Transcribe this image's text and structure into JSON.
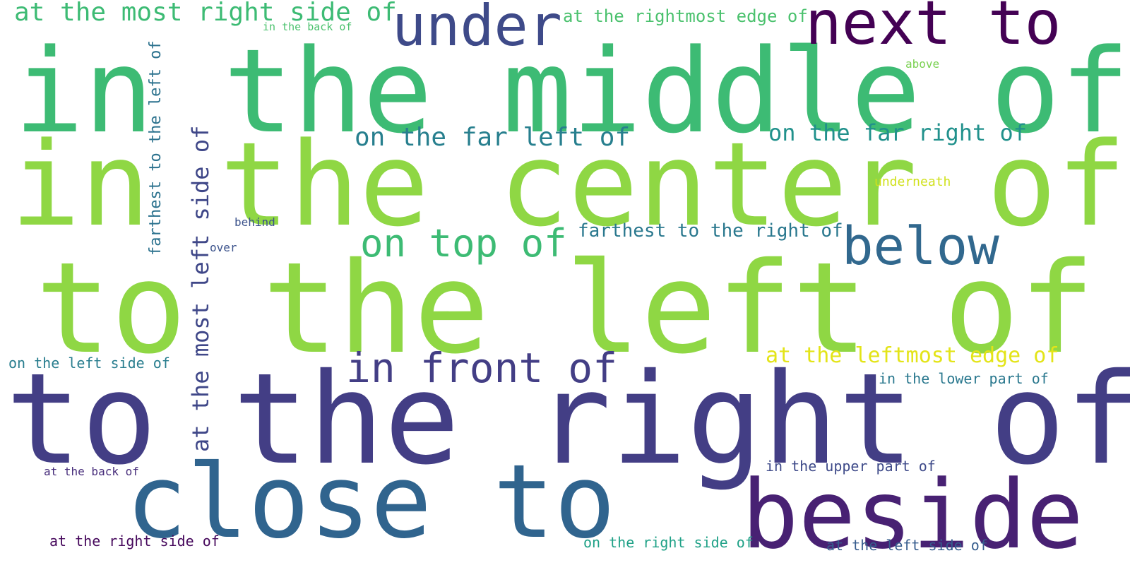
{
  "word_cloud": {
    "background": "#ffffff",
    "words": [
      {
        "text": "in the middle of",
        "color": "#3dbb74"
      },
      {
        "text": "in the center of",
        "color": "#8fd744"
      },
      {
        "text": "to the left of",
        "color": "#8fd744"
      },
      {
        "text": "to the right of",
        "color": "#433e85"
      },
      {
        "text": "close to",
        "color": "#30648e"
      },
      {
        "text": "beside",
        "color": "#482173"
      },
      {
        "text": "next to",
        "color": "#440154"
      },
      {
        "text": "under",
        "color": "#3e4a89"
      },
      {
        "text": "below",
        "color": "#31688e"
      },
      {
        "text": "in front of",
        "color": "#433e85"
      },
      {
        "text": "on top of",
        "color": "#3dbb74"
      },
      {
        "text": "at the most right side of",
        "color": "#3dbb74"
      },
      {
        "text": "on the far left of",
        "color": "#277f8e"
      },
      {
        "text": "on the far right of",
        "color": "#21918c"
      },
      {
        "text": "at the leftmost edge of",
        "color": "#e3e418"
      },
      {
        "text": "farthest to the right of",
        "color": "#2a788e"
      },
      {
        "text": "at the rightmost edge of",
        "color": "#4ac16d"
      },
      {
        "text": "in the lower part of",
        "color": "#2a788e"
      },
      {
        "text": "in the upper part of",
        "color": "#3e4a89"
      },
      {
        "text": "on the left side of",
        "color": "#287d8e"
      },
      {
        "text": "at the right side of",
        "color": "#46085c"
      },
      {
        "text": "on the right side of",
        "color": "#1fa187"
      },
      {
        "text": "at the left side of",
        "color": "#365c8d"
      },
      {
        "text": "underneath",
        "color": "#d0e11c"
      },
      {
        "text": "above",
        "color": "#7ad151"
      },
      {
        "text": "at the back of",
        "color": "#472d7b"
      },
      {
        "text": "behind",
        "color": "#3b528b"
      },
      {
        "text": "over",
        "color": "#3b528b"
      },
      {
        "text": "in the back of",
        "color": "#4ac16d"
      },
      {
        "text": "at the most left side of",
        "color": "#3f4788"
      },
      {
        "text": "farthest to the left of",
        "color": "#2c728e"
      }
    ]
  }
}
